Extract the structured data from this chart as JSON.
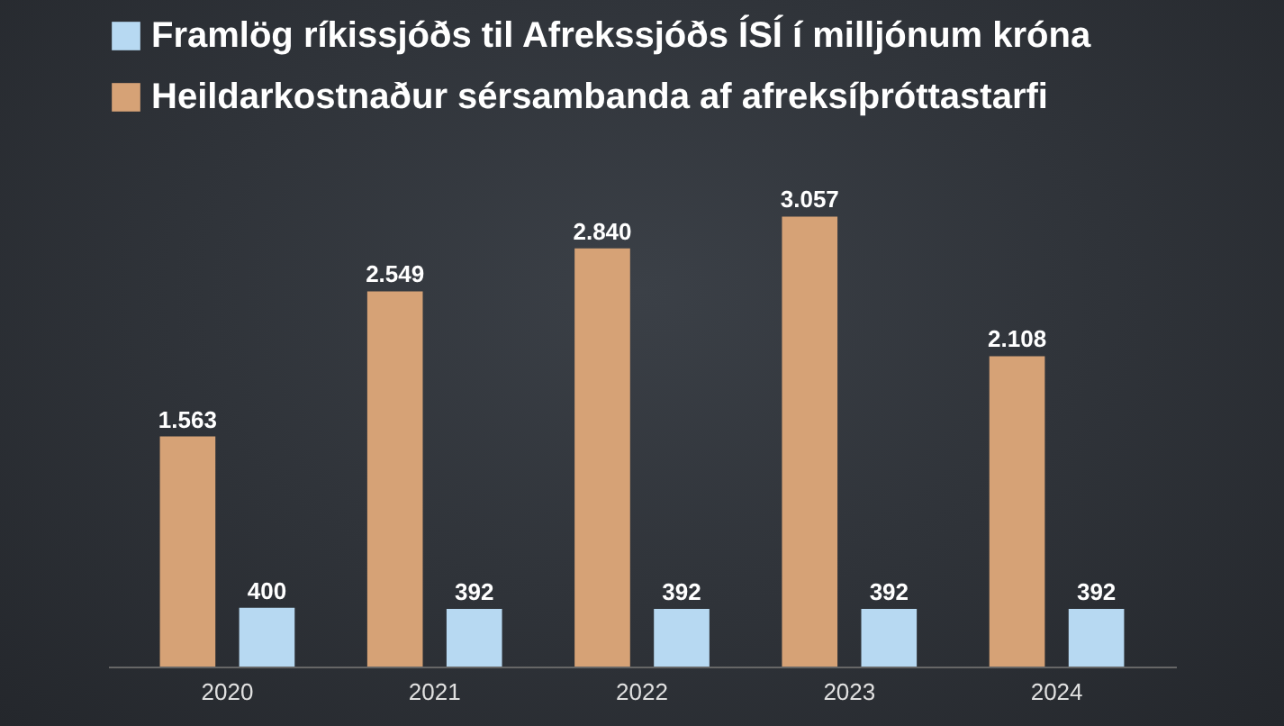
{
  "chart_data": {
    "type": "bar",
    "categories": [
      "2020",
      "2021",
      "2022",
      "2023",
      "2024"
    ],
    "series": [
      {
        "name": "Framlög ríkissjóðs til Afrekssjóðs ÍSÍ í milljónum króna",
        "color": "#b7d9f2",
        "values": [
          400,
          392,
          392,
          392,
          392
        ],
        "value_labels": [
          "400",
          "392",
          "392",
          "392",
          "392"
        ]
      },
      {
        "name": "Heildarkostnaður sérsambanda af afreksíþróttastarfi",
        "color": "#d6a276",
        "values": [
          1563,
          2549,
          2840,
          3057,
          2108
        ],
        "value_labels": [
          "1.563",
          "2.549",
          "2.840",
          "3.057",
          "2.108"
        ]
      }
    ],
    "legend": "top",
    "grid": false
  }
}
